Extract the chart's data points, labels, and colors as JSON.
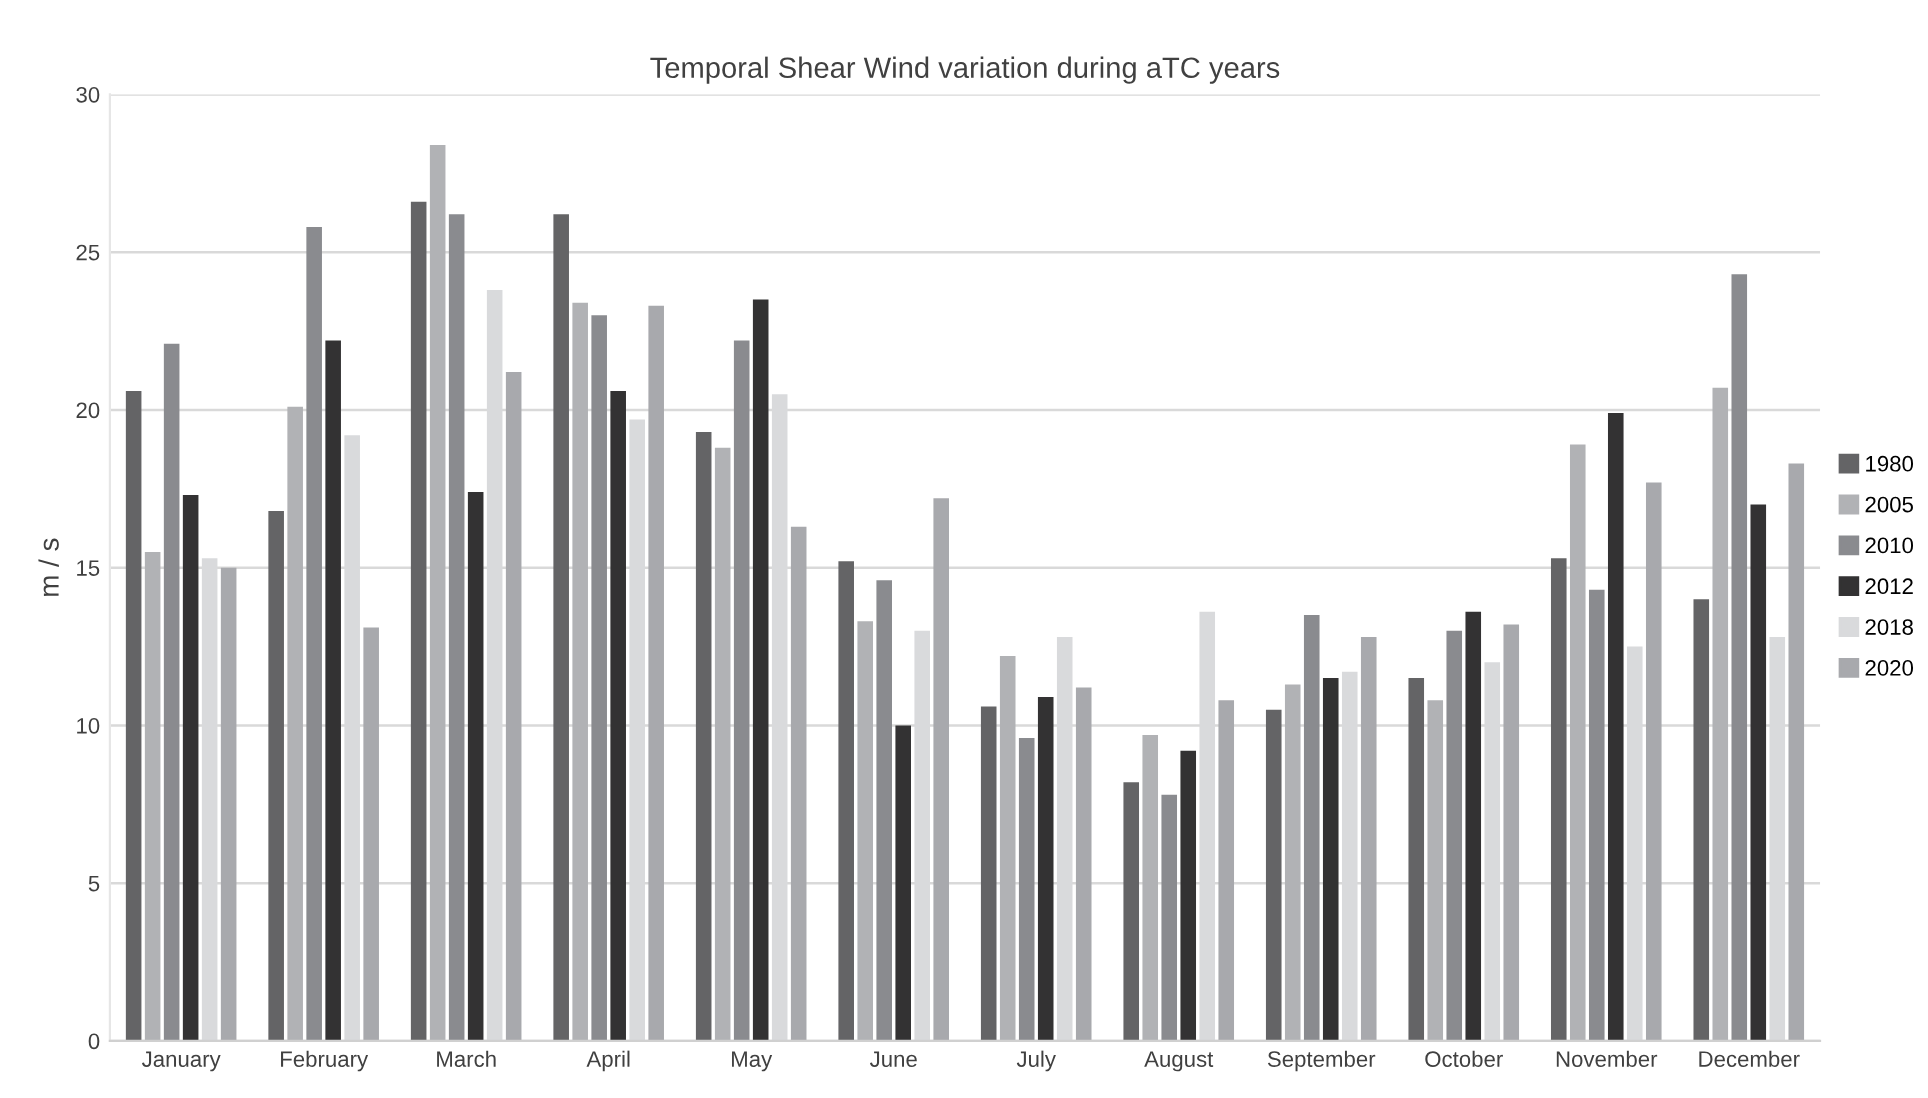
{
  "chart_data": {
    "type": "bar",
    "title": "Temporal Shear Wind variation during aTC years",
    "ylabel": "m / s",
    "categories": [
      "January",
      "February",
      "March",
      "April",
      "May",
      "June",
      "July",
      "August",
      "September",
      "October",
      "November",
      "December"
    ],
    "series": [
      {
        "name": "1980",
        "color": "#646466",
        "values": [
          20.6,
          16.8,
          26.6,
          26.2,
          19.3,
          15.2,
          10.6,
          8.2,
          10.5,
          11.5,
          15.3,
          14.0
        ]
      },
      {
        "name": "2005",
        "color": "#b1b2b5",
        "values": [
          15.5,
          20.1,
          28.4,
          23.4,
          18.8,
          13.3,
          12.2,
          9.7,
          11.3,
          10.8,
          18.9,
          20.7
        ]
      },
      {
        "name": "2010",
        "color": "#8a8b8f",
        "values": [
          22.1,
          25.8,
          26.2,
          23.0,
          22.2,
          14.6,
          9.6,
          7.8,
          13.5,
          13.0,
          14.3,
          24.3
        ]
      },
      {
        "name": "2012",
        "color": "#333233",
        "values": [
          17.3,
          22.2,
          17.4,
          20.6,
          23.5,
          10.0,
          10.9,
          9.2,
          11.5,
          13.6,
          19.9,
          17.0
        ]
      },
      {
        "name": "2018",
        "color": "#d9dadc",
        "values": [
          15.3,
          19.2,
          23.8,
          19.7,
          20.5,
          13.0,
          12.8,
          13.6,
          11.7,
          12.0,
          12.5,
          12.8
        ]
      },
      {
        "name": "2020",
        "color": "#a8a9ad",
        "values": [
          15.0,
          13.1,
          21.2,
          23.3,
          16.3,
          17.2,
          11.2,
          10.8,
          12.8,
          13.2,
          17.7,
          18.3
        ]
      }
    ],
    "ylim": [
      0,
      30
    ],
    "yticks": [
      0,
      5,
      10,
      15,
      20,
      25,
      30
    ],
    "grid": "y",
    "legend": "right"
  }
}
